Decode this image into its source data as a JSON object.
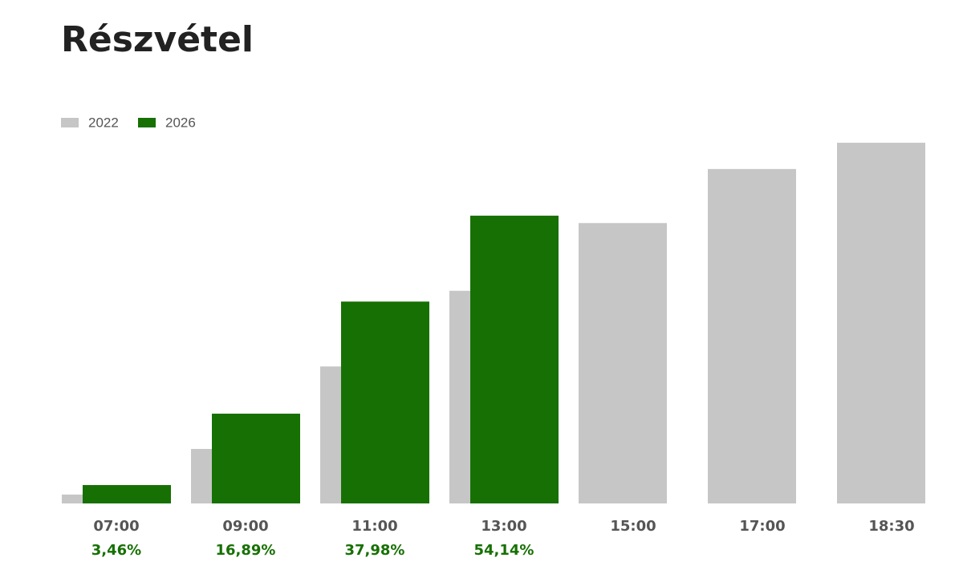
{
  "chart_data": {
    "type": "bar",
    "title": "Részvétel",
    "categories": [
      "07:00",
      "09:00",
      "11:00",
      "13:00",
      "15:00",
      "17:00",
      "18:30"
    ],
    "series": [
      {
        "name": "2022",
        "color": "#c6c6c6",
        "values": [
          1.67,
          10.25,
          25.77,
          40.01,
          52.75,
          62.92,
          67.86
        ]
      },
      {
        "name": "2026",
        "color": "#177003",
        "values": [
          3.46,
          16.89,
          37.98,
          54.14,
          null,
          null,
          null
        ],
        "value_labels": [
          "3,46%",
          "16,89%",
          "37,98%",
          "54,14%",
          null,
          null,
          null
        ]
      }
    ],
    "ylim": [
      0,
      70
    ],
    "grid": false
  }
}
